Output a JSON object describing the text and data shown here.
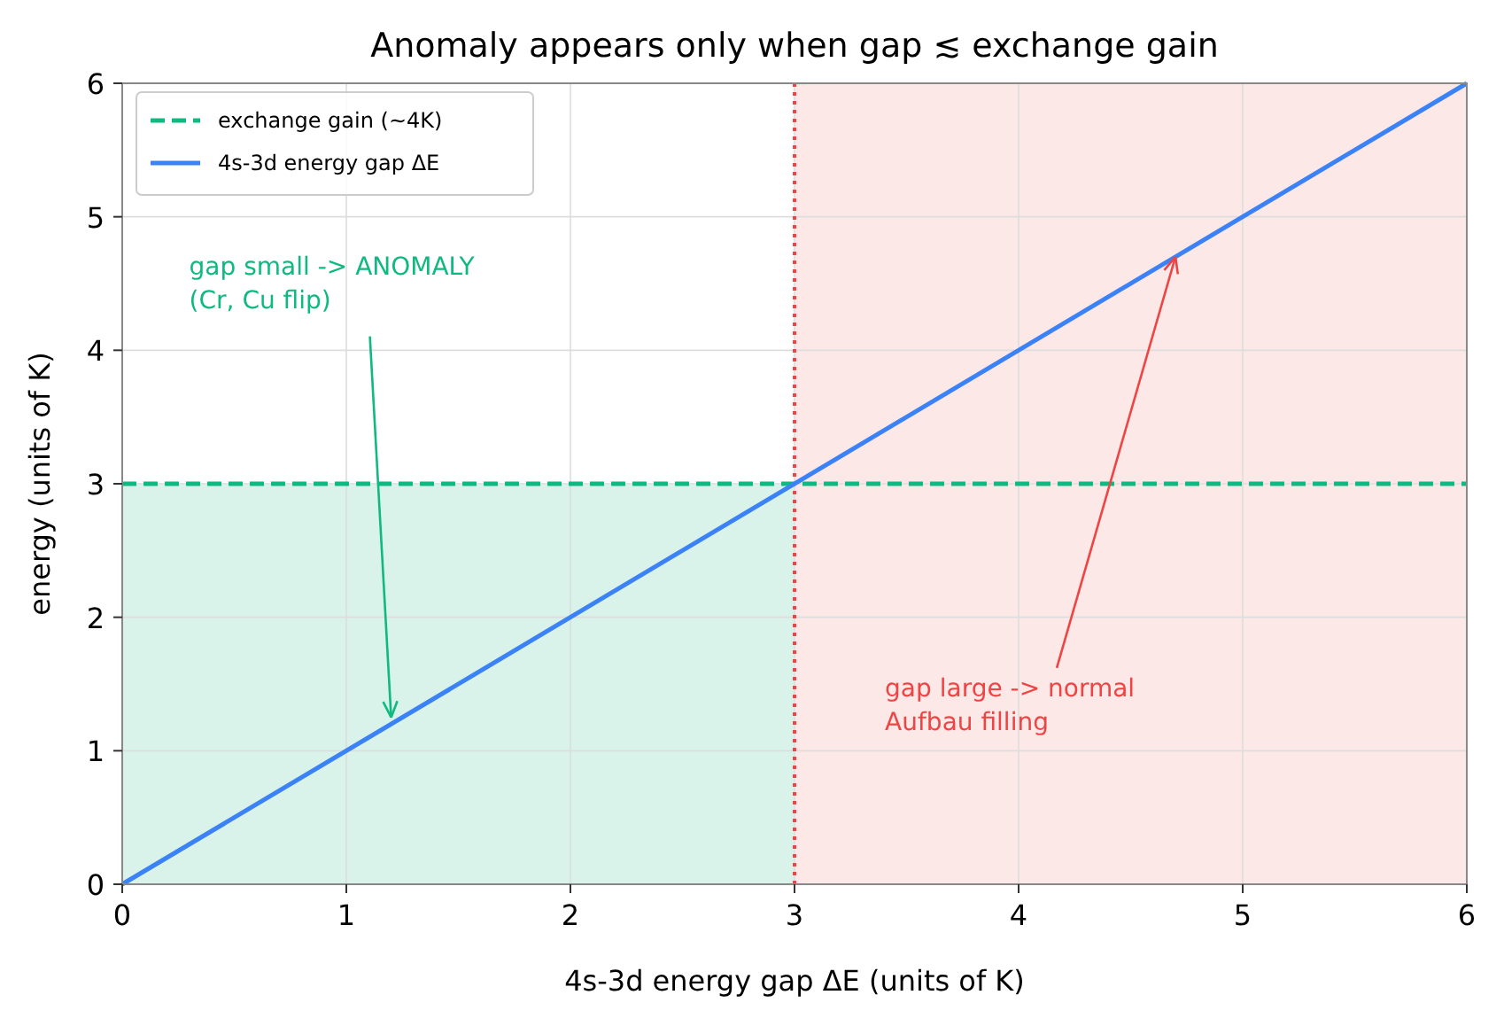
{
  "chart_data": {
    "type": "line",
    "title": "Anomaly appears only when gap ≲ exchange gain",
    "xlabel": "4s-3d energy gap ΔE  (units of K)",
    "ylabel": "energy (units of K)",
    "xlim": [
      0,
      6
    ],
    "ylim": [
      0,
      6
    ],
    "xticks": [
      0,
      1,
      2,
      3,
      4,
      5,
      6
    ],
    "yticks": [
      0,
      1,
      2,
      3,
      4,
      5,
      6
    ],
    "grid": true,
    "legend": "top left",
    "series": [
      {
        "type": "area",
        "color": "#d9f2ea",
        "x": [
          0,
          3
        ],
        "values": [
          3,
          3
        ]
      },
      {
        "name": "exchange gain (~4K)",
        "color": "#10b981",
        "line_style": "dashed",
        "x": [
          0,
          6
        ],
        "values": [
          3,
          3
        ]
      },
      {
        "name": "4s-3d energy gap  ΔE",
        "color": "#3b82f6",
        "line_style": "solid",
        "x": [
          0,
          6
        ],
        "values": [
          0,
          6
        ]
      }
    ],
    "bands": [
      {
        "axis": "x",
        "from": 3,
        "to": 6,
        "color": "#fde8e8"
      }
    ],
    "ref_lines": [
      {
        "axis": "x",
        "value": 3,
        "color": "#ef4444",
        "line_style": "dotted"
      }
    ],
    "annotations": [
      {
        "text": "gap small -> ANOMALY\n(Cr, Cu flip)",
        "x": 1.2,
        "y": 1.25
      },
      {
        "text": "gap large -> normal\nAufbau filling",
        "x": 4.7,
        "y": 4.7
      }
    ]
  }
}
